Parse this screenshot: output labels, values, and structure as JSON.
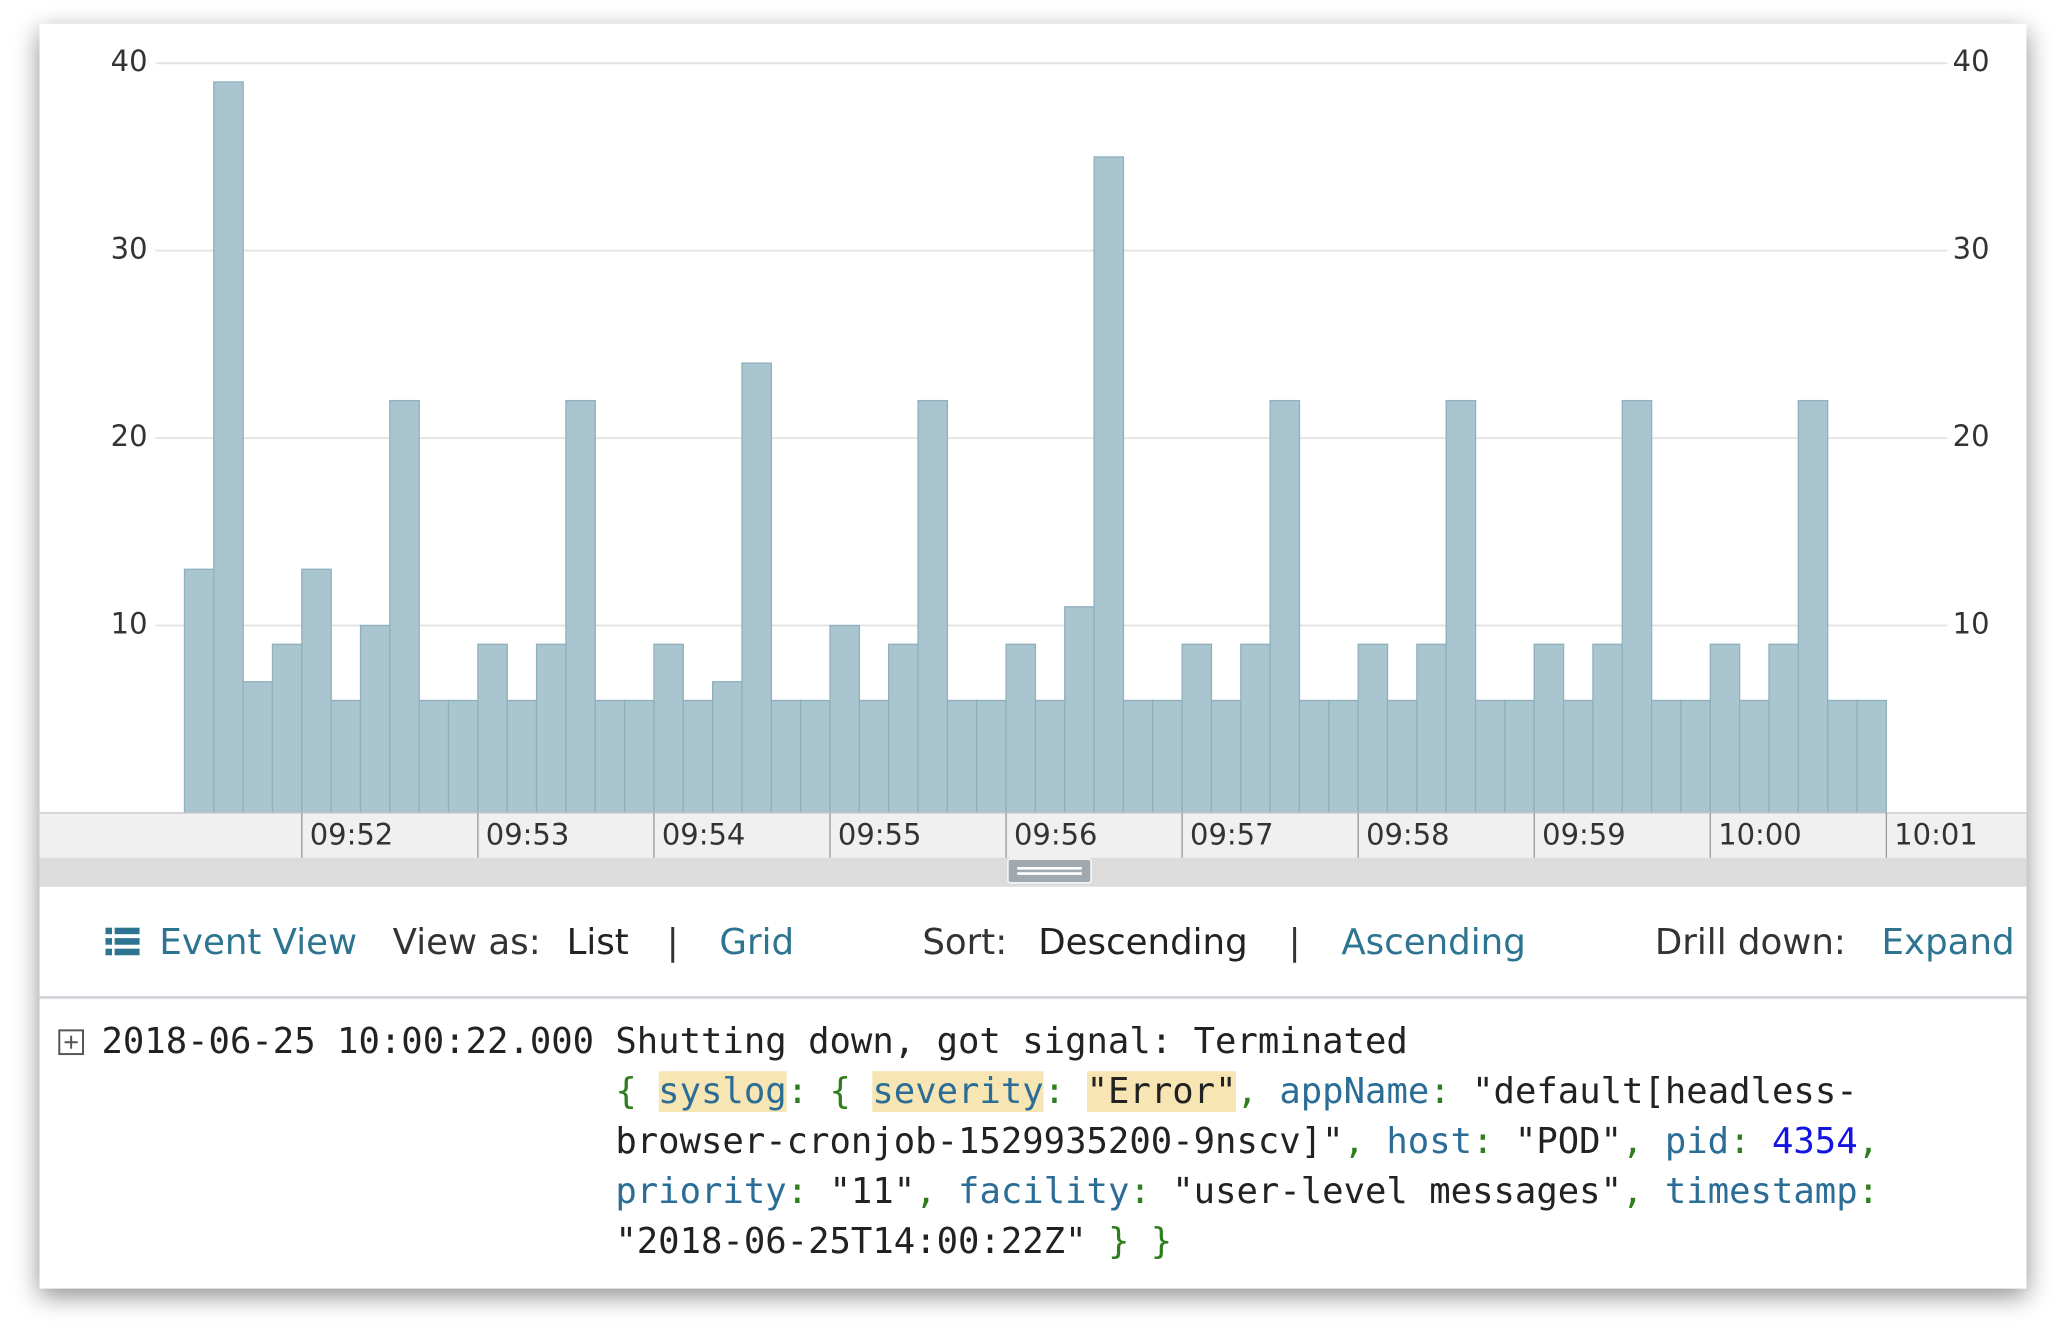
{
  "chart_data": {
    "type": "bar",
    "values": [
      13,
      39,
      7,
      9,
      13,
      6,
      10,
      22,
      6,
      6,
      9,
      6,
      9,
      22,
      6,
      6,
      9,
      6,
      7,
      24,
      6,
      6,
      10,
      6,
      9,
      22,
      6,
      6,
      9,
      6,
      11,
      35,
      6,
      6,
      9,
      6,
      9,
      22,
      6,
      6,
      9,
      6,
      9,
      22,
      6,
      6,
      9,
      6,
      9,
      22,
      6,
      6,
      9,
      6,
      9,
      22,
      6,
      6
    ],
    "color": "#a9c5d0",
    "ylim": [
      0,
      40
    ],
    "yticks": [
      10,
      20,
      30,
      40
    ],
    "grid": true,
    "xtick_labels": [
      "09:52",
      "09:53",
      "09:54",
      "09:55",
      "09:56",
      "09:57",
      "09:58",
      "09:59",
      "10:00",
      "10:01"
    ]
  },
  "toolbar": {
    "title": "Event View",
    "view_label": "View as:",
    "view_current": "List",
    "view_other": "Grid",
    "sort_label": "Sort:",
    "sort_current": "Descending",
    "sort_other": "Ascending",
    "drill_label": "Drill down:",
    "drill_action": "Expand",
    "separator": "|"
  },
  "event": {
    "timestamp": "2018-06-25 10:00:22.000",
    "message": "Shutting down, got signal: Terminated",
    "lines": [
      [
        {
          "text": "{ ",
          "kind": "punct"
        },
        {
          "text": "syslog",
          "kind": "key-hl"
        },
        {
          "text": ": { ",
          "kind": "punct"
        },
        {
          "text": "severity",
          "kind": "key-hl"
        },
        {
          "text": ": ",
          "kind": "punct"
        },
        {
          "text": "\"Error\"",
          "kind": "str-hl"
        },
        {
          "text": ", ",
          "kind": "punct"
        },
        {
          "text": "appName",
          "kind": "key"
        },
        {
          "text": ": ",
          "kind": "punct"
        },
        {
          "text": "\"default[headless-",
          "kind": "str"
        }
      ],
      [
        {
          "text": "browser-cronjob-1529935200-9nscv]\"",
          "kind": "str"
        },
        {
          "text": ", ",
          "kind": "punct"
        },
        {
          "text": "host",
          "kind": "key"
        },
        {
          "text": ": ",
          "kind": "punct"
        },
        {
          "text": "\"POD\"",
          "kind": "str"
        },
        {
          "text": ", ",
          "kind": "punct"
        },
        {
          "text": "pid",
          "kind": "key"
        },
        {
          "text": ": ",
          "kind": "punct"
        },
        {
          "text": "4354",
          "kind": "num"
        },
        {
          "text": ",",
          "kind": "punct"
        }
      ],
      [
        {
          "text": "priority",
          "kind": "key"
        },
        {
          "text": ": ",
          "kind": "punct"
        },
        {
          "text": "\"11\"",
          "kind": "str"
        },
        {
          "text": ", ",
          "kind": "punct"
        },
        {
          "text": "facility",
          "kind": "key"
        },
        {
          "text": ": ",
          "kind": "punct"
        },
        {
          "text": "\"user-level messages\"",
          "kind": "str"
        },
        {
          "text": ", ",
          "kind": "punct"
        },
        {
          "text": "timestamp",
          "kind": "key"
        },
        {
          "text": ":",
          "kind": "punct"
        }
      ],
      [
        {
          "text": "\"2018-06-25T14:00:22Z\"",
          "kind": "str"
        },
        {
          "text": " } }",
          "kind": "punct"
        }
      ]
    ]
  }
}
